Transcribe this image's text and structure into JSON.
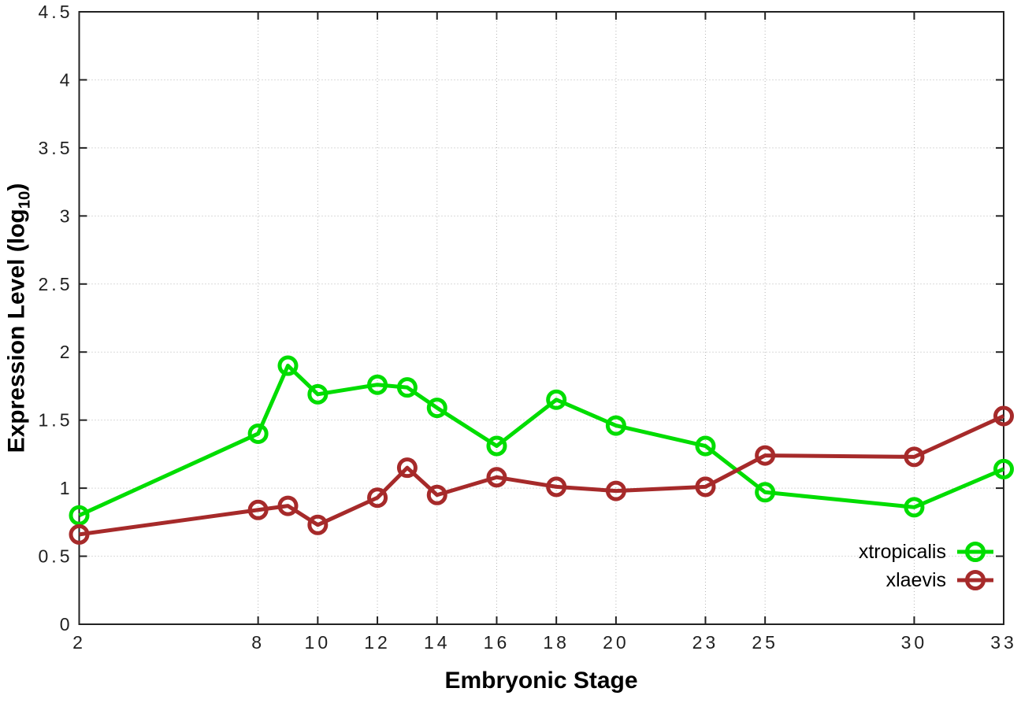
{
  "chart_data": {
    "type": "line",
    "title": "",
    "xlabel": "Embryonic Stage",
    "ylabel": {
      "pre": "Expression Level (log",
      "sub": "10",
      "post": ")"
    },
    "x": [
      2,
      8,
      9,
      10,
      12,
      13,
      14,
      16,
      18,
      20,
      23,
      25,
      30,
      33
    ],
    "x_tick_labels": [
      2,
      8,
      10,
      12,
      14,
      16,
      18,
      20,
      23,
      25,
      30,
      33
    ],
    "y_tick_labels": [
      "0",
      "0.5",
      "1",
      "1.5",
      "2",
      "2.5",
      "3",
      "3.5",
      "4",
      "4.5"
    ],
    "y_tick_values": [
      0,
      0.5,
      1,
      1.5,
      2,
      2.5,
      3,
      3.5,
      4,
      4.5
    ],
    "xlim": [
      2,
      33
    ],
    "ylim": [
      0,
      4.5
    ],
    "grid": true,
    "legend_position": "inside-bottom-right",
    "series": [
      {
        "name": "xtropicalis",
        "color": "#00dd00",
        "values": [
          0.8,
          1.4,
          1.9,
          1.69,
          1.76,
          1.74,
          1.59,
          1.31,
          1.65,
          1.46,
          1.31,
          0.97,
          0.86,
          1.14
        ]
      },
      {
        "name": "xlaevis",
        "color": "#a62a2a",
        "values": [
          0.66,
          0.84,
          0.87,
          0.73,
          0.93,
          1.15,
          0.95,
          1.08,
          1.01,
          0.98,
          1.01,
          1.24,
          1.23,
          1.53
        ]
      }
    ],
    "style_colors": {
      "border": "#222222",
      "grid": "#b5b5b5",
      "tick_text": "#1f1f1f"
    }
  }
}
